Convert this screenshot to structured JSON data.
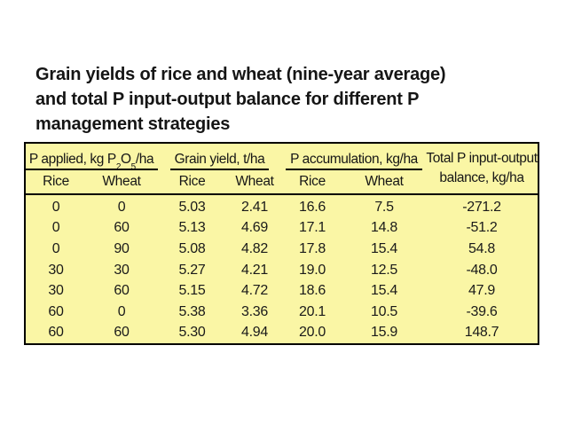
{
  "title": {
    "lines": [
      "Grain yields of rice and wheat (nine-year average)",
      "and total P input-output balance for different P",
      "management strategies"
    ]
  },
  "table": {
    "groups": [
      {
        "pre": "P applied, kg P",
        "sub1": "2",
        "mid": "O",
        "sub2": "5",
        "post": "/ha"
      },
      {
        "label": "Grain yield, t/ha"
      },
      {
        "label": "P accumulation, kg/ha"
      },
      {
        "line1": "Total P input-output",
        "line2": "balance, kg/ha"
      }
    ],
    "subheaders": [
      "Rice",
      "Wheat",
      "Rice",
      "Wheat",
      "Rice",
      "Wheat"
    ],
    "rows": [
      [
        "0",
        "0",
        "5.03",
        "2.41",
        "16.6",
        "7.5",
        "-271.2"
      ],
      [
        "0",
        "60",
        "5.13",
        "4.69",
        "17.1",
        "14.8",
        "-51.2"
      ],
      [
        "0",
        "90",
        "5.08",
        "4.82",
        "17.8",
        "15.4",
        "54.8"
      ],
      [
        "30",
        "30",
        "5.27",
        "4.21",
        "19.0",
        "12.5",
        "-48.0"
      ],
      [
        "30",
        "60",
        "5.15",
        "4.72",
        "18.6",
        "15.4",
        "47.9"
      ],
      [
        "60",
        "0",
        "5.38",
        "3.36",
        "20.1",
        "10.5",
        "-39.6"
      ],
      [
        "60",
        "60",
        "5.30",
        "4.94",
        "20.0",
        "15.9",
        "148.7"
      ]
    ],
    "colors": {
      "table_bg": "#FAF6A5",
      "border": "#000000",
      "text": "#1A1A1A",
      "page_bg": "#FFFFFF"
    }
  }
}
